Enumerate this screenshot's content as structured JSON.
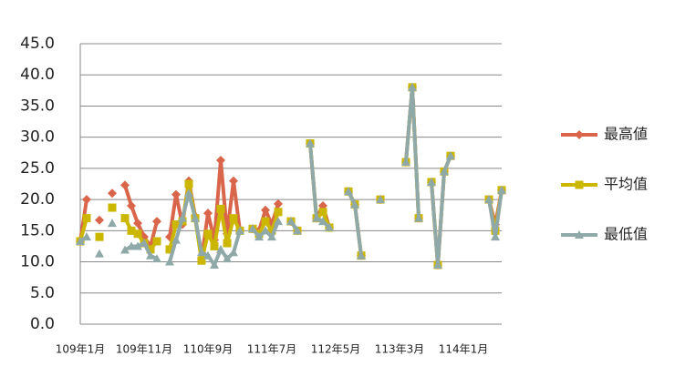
{
  "chart_data": {
    "type": "line",
    "categories": [
      "109年1月",
      null,
      null,
      null,
      null,
      null,
      null,
      null,
      null,
      null,
      "109年11月",
      null,
      null,
      null,
      null,
      null,
      null,
      null,
      null,
      null,
      "110年9月",
      null,
      null,
      null,
      null,
      null,
      null,
      null,
      null,
      null,
      "111年7月",
      null,
      null,
      null,
      null,
      null,
      null,
      null,
      null,
      null,
      "112年5月",
      null,
      null,
      null,
      null,
      null,
      null,
      null,
      null,
      null,
      "113年3月",
      null,
      null,
      null,
      null,
      null,
      null,
      null,
      null,
      null,
      "114年1月",
      null,
      null,
      null,
      null,
      null,
      null
    ],
    "series": [
      {
        "name": "最高値",
        "color": "#d9664a",
        "marker": "diamond",
        "values": [
          13.3,
          20,
          null,
          16.7,
          null,
          21,
          null,
          22.3,
          19,
          16.2,
          14,
          12.5,
          16.5,
          null,
          14,
          20.8,
          16,
          23,
          17.3,
          10.5,
          17.8,
          13.5,
          26.3,
          14.5,
          23,
          15,
          null,
          15.3,
          15,
          18.3,
          16,
          19.3,
          null,
          16.5,
          15,
          null,
          29,
          17,
          19,
          15.5,
          null,
          null,
          21.3,
          19.2,
          11,
          null,
          null,
          20,
          null,
          null,
          null,
          26,
          38,
          17,
          null,
          22.8,
          9.5,
          24.5,
          27,
          null,
          null,
          null,
          null,
          null,
          20,
          16,
          21.5
        ]
      },
      {
        "name": "平均值",
        "color": "#cbb600",
        "marker": "square",
        "values": [
          13.3,
          17,
          null,
          14,
          null,
          18.7,
          null,
          17,
          15,
          14.5,
          13,
          12,
          13.3,
          null,
          12,
          16,
          16.5,
          22.5,
          17,
          10.2,
          14.5,
          12.5,
          18.5,
          13,
          17,
          15,
          null,
          15.3,
          14.5,
          16.5,
          15,
          18,
          null,
          16.5,
          15,
          null,
          29,
          17,
          18,
          15.5,
          null,
          null,
          21.3,
          19.2,
          11,
          null,
          null,
          20,
          null,
          null,
          null,
          26,
          38,
          17,
          null,
          22.8,
          9.5,
          24.5,
          27,
          null,
          null,
          null,
          null,
          null,
          20,
          15,
          21.5
        ]
      },
      {
        "name": "最低值",
        "color": "#8fa9a8",
        "marker": "triangle",
        "values": [
          13.3,
          14,
          null,
          11.3,
          null,
          16.2,
          null,
          11.9,
          12.5,
          12.5,
          13,
          11,
          10.5,
          null,
          10,
          13.5,
          17,
          21,
          17,
          11.5,
          11,
          9.5,
          12,
          10.5,
          11.5,
          15,
          null,
          15.3,
          14,
          15,
          14,
          16.5,
          null,
          16.5,
          15,
          null,
          29,
          17,
          16.5,
          15.5,
          null,
          null,
          21.3,
          19.2,
          11,
          null,
          null,
          20,
          null,
          null,
          null,
          26,
          38,
          17,
          null,
          22.8,
          9.5,
          24.5,
          27,
          null,
          null,
          null,
          null,
          null,
          20,
          14,
          21.5
        ]
      }
    ],
    "ylim": [
      0,
      45
    ],
    "yticks": [
      {
        "value": 0,
        "label": "0.0"
      },
      {
        "value": 5,
        "label": "5.0"
      },
      {
        "value": 10,
        "label": "10.0"
      },
      {
        "value": 15,
        "label": "15.0"
      },
      {
        "value": 20,
        "label": "20.0"
      },
      {
        "value": 25,
        "label": "25.0"
      },
      {
        "value": 30,
        "label": "30.0"
      },
      {
        "value": 35,
        "label": "35.0"
      },
      {
        "value": 40,
        "label": "40.0"
      },
      {
        "value": 45,
        "label": "45.0"
      }
    ],
    "grid": true,
    "legend": "right"
  }
}
